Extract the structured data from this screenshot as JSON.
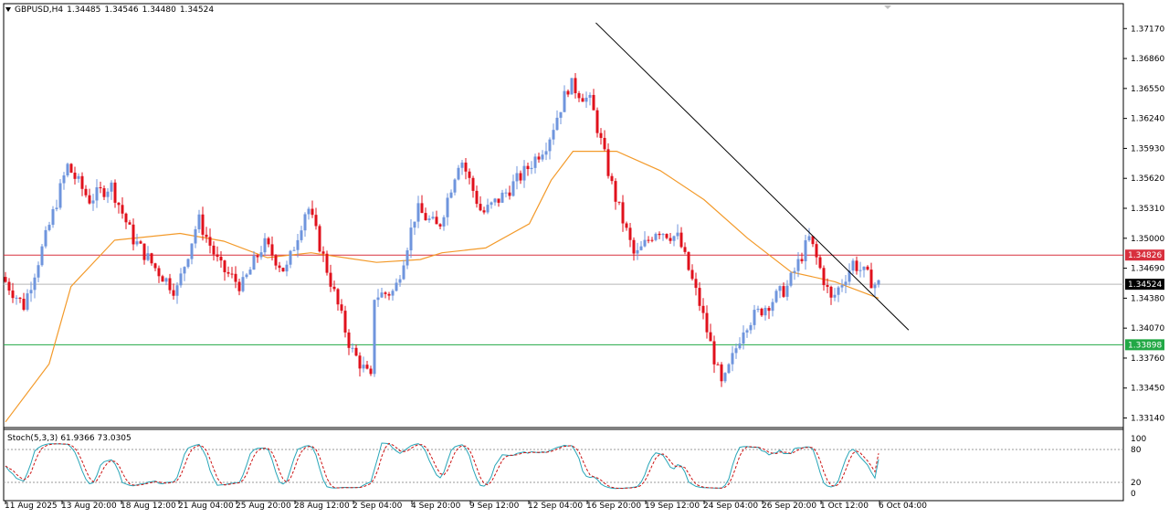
{
  "header": {
    "symbol": "GBPUSD,H4",
    "open": "1.34485",
    "high": "1.34546",
    "low": "1.34480",
    "close": "1.34524"
  },
  "colors": {
    "bull": "#6f95dd",
    "bear": "#e0111c",
    "ma": "#f39a2a",
    "trendline": "#000000",
    "resistance": "#d8303e",
    "support": "#22a845",
    "price_line": "#b8b8b8",
    "stoch_main": "#29a6b8",
    "stoch_signal": "#cc1111"
  },
  "price_axis": {
    "ticks": [
      "1.37170",
      "1.36860",
      "1.36550",
      "1.36240",
      "1.35930",
      "1.35620",
      "1.35310",
      "1.35000",
      "1.34690",
      "1.34380",
      "1.34070",
      "1.33760",
      "1.33450",
      "1.33140"
    ],
    "min": 1.3306,
    "max": 1.3739
  },
  "time_axis": {
    "labels": [
      "11 Aug 2025",
      "13 Aug 20:00",
      "18 Aug 12:00",
      "21 Aug 04:00",
      "25 Aug 20:00",
      "28 Aug 12:00",
      "2 Sep 04:00",
      "4 Sep 20:00",
      "9 Sep 12:00",
      "12 Sep 04:00",
      "16 Sep 20:00",
      "19 Sep 12:00",
      "24 Sep 04:00",
      "26 Sep 20:00",
      "1 Oct 12:00",
      "6 Oct 04:00"
    ]
  },
  "price_labels": {
    "resistance": "1.34826",
    "current": "1.34524",
    "support": "1.33898"
  },
  "stochastic": {
    "label": "Stoch(5,3,3)",
    "main_value": "61.9366",
    "signal_value": "73.0305",
    "levels": [
      "100",
      "80",
      "20",
      "0"
    ]
  },
  "chart_data": {
    "type": "candlestick",
    "symbol": "GBPUSD",
    "timeframe": "H4",
    "ohlc_last": {
      "open": 1.34485,
      "high": 1.34546,
      "low": 1.3448,
      "close": 1.34524
    },
    "ylim": [
      1.3306,
      1.3739
    ],
    "anchors": [
      {
        "date": "11 Aug",
        "price": 1.346
      },
      {
        "date": "12 Aug",
        "price": 1.343
      },
      {
        "date": "13 Aug",
        "price": 1.35
      },
      {
        "date": "14 Aug",
        "price": 1.3575
      },
      {
        "date": "15 Aug",
        "price": 1.354
      },
      {
        "date": "18 Aug",
        "price": 1.3555
      },
      {
        "date": "19 Aug",
        "price": 1.35
      },
      {
        "date": "20 Aug",
        "price": 1.347
      },
      {
        "date": "21 Aug",
        "price": 1.3445
      },
      {
        "date": "22 Aug",
        "price": 1.352
      },
      {
        "date": "25 Aug",
        "price": 1.347
      },
      {
        "date": "26 Aug",
        "price": 1.345
      },
      {
        "date": "27 Aug",
        "price": 1.3495
      },
      {
        "date": "28 Aug",
        "price": 1.3465
      },
      {
        "date": "29 Aug",
        "price": 1.3535
      },
      {
        "date": "2 Sep",
        "price": 1.3385
      },
      {
        "date": "3 Sep",
        "price": 1.335
      },
      {
        "date": "3 Sep",
        "price": 1.344
      },
      {
        "date": "4 Sep",
        "price": 1.3445
      },
      {
        "date": "5 Sep",
        "price": 1.353
      },
      {
        "date": "8 Sep",
        "price": 1.351
      },
      {
        "date": "9 Sep",
        "price": 1.3585
      },
      {
        "date": "10 Sep",
        "price": 1.3525
      },
      {
        "date": "11 Sep",
        "price": 1.3545
      },
      {
        "date": "12 Sep",
        "price": 1.357
      },
      {
        "date": "15 Sep",
        "price": 1.36
      },
      {
        "date": "16 Sep",
        "price": 1.366
      },
      {
        "date": "17 Sep",
        "price": 1.364
      },
      {
        "date": "18 Sep",
        "price": 1.355
      },
      {
        "date": "19 Sep",
        "price": 1.348
      },
      {
        "date": "22 Sep",
        "price": 1.351
      },
      {
        "date": "23 Sep",
        "price": 1.35
      },
      {
        "date": "24 Sep",
        "price": 1.343
      },
      {
        "date": "25 Sep",
        "price": 1.3345
      },
      {
        "date": "26 Sep",
        "price": 1.341
      },
      {
        "date": "29 Sep",
        "price": 1.343
      },
      {
        "date": "30 Sep",
        "price": 1.345
      },
      {
        "date": "1 Oct",
        "price": 1.35
      },
      {
        "date": "2 Oct",
        "price": 1.3435
      },
      {
        "date": "3 Oct",
        "price": 1.3475
      },
      {
        "date": "6 Oct",
        "price": 1.34524
      }
    ],
    "moving_average": [
      {
        "date": "11 Aug",
        "price": 1.331
      },
      {
        "date": "13 Aug",
        "price": 1.337
      },
      {
        "date": "14 Aug",
        "price": 1.345
      },
      {
        "date": "18 Aug",
        "price": 1.3498
      },
      {
        "date": "21 Aug",
        "price": 1.3505
      },
      {
        "date": "25 Aug",
        "price": 1.3497
      },
      {
        "date": "27 Aug",
        "price": 1.348
      },
      {
        "date": "29 Aug",
        "price": 1.3485
      },
      {
        "date": "3 Sep",
        "price": 1.3475
      },
      {
        "date": "5 Sep",
        "price": 1.3478
      },
      {
        "date": "8 Sep",
        "price": 1.3485
      },
      {
        "date": "10 Sep",
        "price": 1.349
      },
      {
        "date": "12 Sep",
        "price": 1.3515
      },
      {
        "date": "15 Sep",
        "price": 1.356
      },
      {
        "date": "16 Sep",
        "price": 1.359
      },
      {
        "date": "18 Sep",
        "price": 1.359
      },
      {
        "date": "22 Sep",
        "price": 1.357
      },
      {
        "date": "24 Sep",
        "price": 1.354
      },
      {
        "date": "26 Sep",
        "price": 1.35
      },
      {
        "date": "30 Sep",
        "price": 1.3465
      },
      {
        "date": "2 Oct",
        "price": 1.3455
      },
      {
        "date": "6 Oct",
        "price": 1.3438
      }
    ],
    "trendline": [
      {
        "date": "16 Sep",
        "price": 1.3723
      },
      {
        "date": "7 Oct",
        "price": 1.3405
      }
    ],
    "resistance_level": 1.34826,
    "support_level": 1.33898,
    "current_price": 1.34524,
    "stochastic": {
      "k": 61.9366,
      "d": 73.0305,
      "overbought": 80,
      "oversold": 20,
      "ylim": [
        0,
        100
      ]
    }
  }
}
